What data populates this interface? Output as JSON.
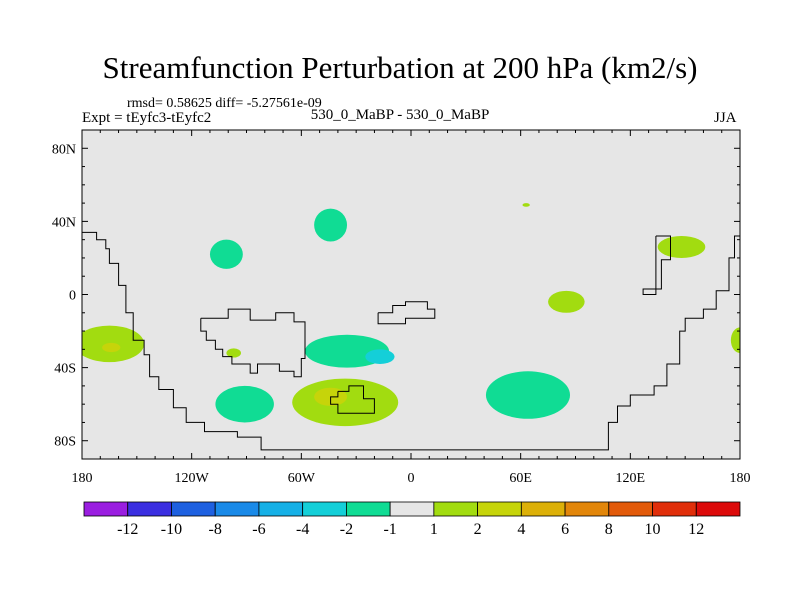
{
  "chart_data": {
    "type": "contour-map",
    "title": "Streamfunction Perturbation at 200 hPa (km2/s)",
    "stats_text": "rmsd= 0.58625 diff= -5.27561e-09",
    "experiment": "Expt = tEyfc3-tEyfc2",
    "case": "530_0_MaBP - 530_0_MaBP",
    "season": "JJA",
    "x_range": [
      -180,
      180
    ],
    "y_range": [
      -90,
      90
    ],
    "x_ticks": [
      {
        "value": -180,
        "label": "180"
      },
      {
        "value": -120,
        "label": "120W"
      },
      {
        "value": -60,
        "label": "60W"
      },
      {
        "value": 0,
        "label": "0"
      },
      {
        "value": 60,
        "label": "60E"
      },
      {
        "value": 120,
        "label": "120E"
      },
      {
        "value": 180,
        "label": "180"
      }
    ],
    "y_ticks": [
      {
        "value": 80,
        "label": "80N"
      },
      {
        "value": 40,
        "label": "40N"
      },
      {
        "value": 0,
        "label": "0"
      },
      {
        "value": -40,
        "label": "40S"
      },
      {
        "value": -80,
        "label": "80S"
      }
    ],
    "colorbar": {
      "levels": [
        "-12",
        "-10",
        "-8",
        "-6",
        "-4",
        "-2",
        "-1",
        "1",
        "2",
        "4",
        "6",
        "8",
        "10",
        "12"
      ],
      "colors": [
        "#9a1ee0",
        "#3b2ee0",
        "#1e60e0",
        "#1a8ae8",
        "#15b0e6",
        "#14cfd8",
        "#10dc94",
        "#e6e6e6",
        "#a2dc10",
        "#c6d40a",
        "#dcb008",
        "#e2860a",
        "#e25a0a",
        "#e02e0a",
        "#dc0a0a"
      ]
    },
    "anomalies": [
      {
        "lon": -165,
        "lat": -27,
        "rx": 19,
        "ry": 10,
        "level": "1 to 2",
        "color": "#a2dc10"
      },
      {
        "lon": -164,
        "lat": -29,
        "rx": 5,
        "ry": 2.5,
        "level": "2 to 4",
        "color": "#c6d40a"
      },
      {
        "lon": -101,
        "lat": 22,
        "rx": 9,
        "ry": 8,
        "level": "-1 to -2",
        "color": "#10dc94"
      },
      {
        "lon": -97,
        "lat": -32,
        "rx": 4,
        "ry": 2.5,
        "level": "1 to 2",
        "color": "#a2dc10"
      },
      {
        "lon": -91,
        "lat": -60,
        "rx": 16,
        "ry": 10,
        "level": "-1 to -2",
        "color": "#10dc94"
      },
      {
        "lon": -44,
        "lat": 38,
        "rx": 9,
        "ry": 9,
        "level": "-1 to -2",
        "color": "#10dc94"
      },
      {
        "lon": -35,
        "lat": -31,
        "rx": 23,
        "ry": 9,
        "level": "-1 to -2",
        "color": "#10dc94"
      },
      {
        "lon": -17,
        "lat": -34,
        "rx": 8,
        "ry": 4,
        "level": "-2 to -4",
        "color": "#14cfd8"
      },
      {
        "lon": -36,
        "lat": -59,
        "rx": 29,
        "ry": 13,
        "level": "1 to 2",
        "color": "#a2dc10"
      },
      {
        "lon": -44,
        "lat": -56,
        "rx": 9,
        "ry": 5,
        "level": "2 to 4",
        "color": "#c6d40a"
      },
      {
        "lon": 64,
        "lat": -55,
        "rx": 23,
        "ry": 13,
        "level": "-1 to -2",
        "color": "#10dc94"
      },
      {
        "lon": 85,
        "lat": -4,
        "rx": 10,
        "ry": 6,
        "level": "1 to 2",
        "color": "#a2dc10"
      },
      {
        "lon": 63,
        "lat": 49,
        "rx": 2,
        "ry": 1,
        "level": "1 to 2",
        "color": "#a2dc10"
      },
      {
        "lon": 148,
        "lat": 26,
        "rx": 13,
        "ry": 6,
        "level": "1 to 2",
        "color": "#a2dc10"
      },
      {
        "lon": 180,
        "lat": -25,
        "rx": 5,
        "ry": 7,
        "level": "1 to 2",
        "color": "#a2dc10"
      }
    ],
    "coastline_lonlat": [
      [
        [
          -180,
          34
        ],
        [
          -172,
          34
        ],
        [
          -172,
          30
        ],
        [
          -167,
          30
        ],
        [
          -167,
          25
        ],
        [
          -165,
          25
        ],
        [
          -165,
          17
        ],
        [
          -160,
          17
        ],
        [
          -160,
          5
        ],
        [
          -156,
          5
        ],
        [
          -156,
          -10
        ],
        [
          -152,
          -10
        ],
        [
          -152,
          -25
        ],
        [
          -146,
          -25
        ],
        [
          -146,
          -33
        ],
        [
          -143,
          -33
        ],
        [
          -143,
          -45
        ],
        [
          -138,
          -45
        ],
        [
          -138,
          -52
        ],
        [
          -130,
          -52
        ],
        [
          -130,
          -62
        ],
        [
          -123,
          -62
        ],
        [
          -123,
          -70
        ],
        [
          -113,
          -70
        ],
        [
          -113,
          -75
        ],
        [
          -95,
          -75
        ],
        [
          -95,
          -78
        ],
        [
          -82,
          -78
        ],
        [
          -82,
          -85
        ],
        [
          108,
          -85
        ],
        [
          108,
          -70
        ],
        [
          113,
          -70
        ],
        [
          113,
          -61
        ],
        [
          120,
          -61
        ],
        [
          120,
          -55
        ],
        [
          133,
          -55
        ],
        [
          133,
          -50
        ],
        [
          140,
          -50
        ],
        [
          140,
          -38
        ],
        [
          147,
          -38
        ],
        [
          147,
          -20
        ],
        [
          150,
          -20
        ],
        [
          150,
          -13
        ],
        [
          160,
          -13
        ],
        [
          160,
          -8
        ],
        [
          167,
          -8
        ],
        [
          167,
          2
        ],
        [
          174,
          2
        ],
        [
          174,
          20
        ],
        [
          177,
          20
        ],
        [
          177,
          32
        ],
        [
          180,
          32
        ]
      ],
      [
        [
          -115,
          -13
        ],
        [
          -100,
          -13
        ],
        [
          -100,
          -8
        ],
        [
          -88,
          -8
        ],
        [
          -88,
          -14
        ],
        [
          -74,
          -14
        ],
        [
          -74,
          -10
        ],
        [
          -64,
          -10
        ],
        [
          -64,
          -15
        ],
        [
          -58,
          -15
        ],
        [
          -58,
          -35
        ],
        [
          -60,
          -35
        ],
        [
          -60,
          -45
        ],
        [
          -64,
          -45
        ],
        [
          -64,
          -42
        ],
        [
          -72,
          -42
        ],
        [
          -72,
          -38
        ],
        [
          -84,
          -38
        ],
        [
          -84,
          -43
        ],
        [
          -88,
          -43
        ],
        [
          -88,
          -38
        ],
        [
          -98,
          -38
        ],
        [
          -98,
          -34
        ],
        [
          -103,
          -34
        ],
        [
          -103,
          -30
        ],
        [
          -107,
          -30
        ],
        [
          -107,
          -25
        ],
        [
          -112,
          -25
        ],
        [
          -112,
          -20
        ],
        [
          -115,
          -20
        ],
        [
          -115,
          -13
        ]
      ],
      [
        [
          -40,
          -53
        ],
        [
          -34,
          -53
        ],
        [
          -34,
          -50
        ],
        [
          -26,
          -50
        ],
        [
          -26,
          -57
        ],
        [
          -20,
          -57
        ],
        [
          -20,
          -65
        ],
        [
          -40,
          -65
        ],
        [
          -40,
          -60
        ],
        [
          -44,
          -60
        ],
        [
          -44,
          -56
        ],
        [
          -40,
          -56
        ],
        [
          -40,
          -53
        ]
      ],
      [
        [
          -18,
          -10
        ],
        [
          -10,
          -10
        ],
        [
          -10,
          -6
        ],
        [
          -3,
          -6
        ],
        [
          -3,
          -4
        ],
        [
          9,
          -4
        ],
        [
          9,
          -8
        ],
        [
          13,
          -8
        ],
        [
          13,
          -13
        ],
        [
          -3,
          -13
        ],
        [
          -3,
          -16
        ],
        [
          -18,
          -16
        ],
        [
          -18,
          -10
        ]
      ],
      [
        [
          134,
          32
        ],
        [
          142,
          32
        ],
        [
          142,
          19
        ],
        [
          137,
          19
        ],
        [
          137,
          3
        ],
        [
          127,
          3
        ],
        [
          127,
          0
        ],
        [
          134,
          0
        ],
        [
          134,
          32
        ]
      ]
    ]
  }
}
